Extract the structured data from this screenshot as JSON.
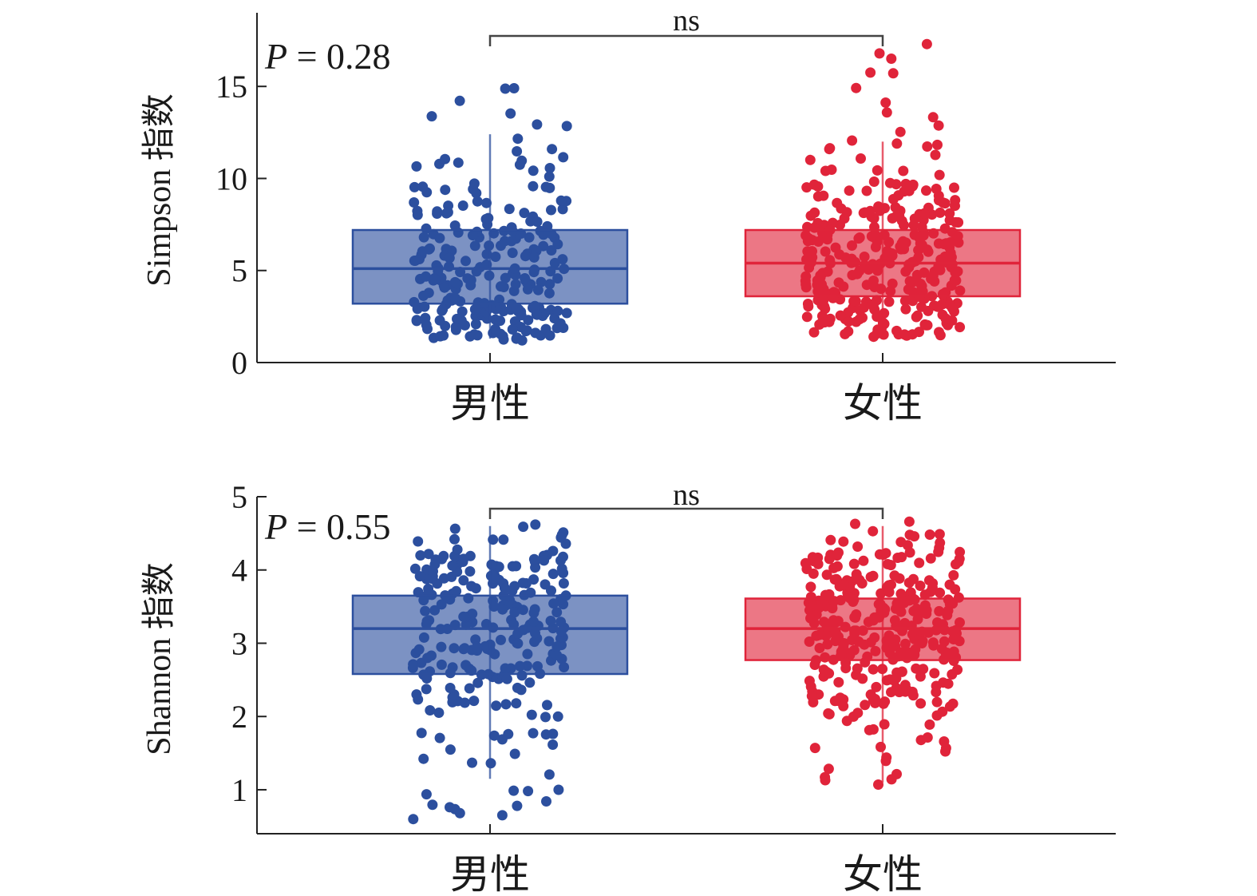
{
  "chart_data": [
    {
      "type": "box",
      "ylabel": "Simpson 指数",
      "categories": [
        "男性",
        "女性"
      ],
      "yticks": [
        0,
        5,
        10,
        15
      ],
      "ylim": [
        0,
        19
      ],
      "p_value_prefix": "P",
      "p_value_text": " = 0.28",
      "significance": "ns",
      "colors": {
        "男性": "#2c4f9e",
        "女性": "#e0243a"
      },
      "boxes": [
        {
          "category": "男性",
          "q1": 3.2,
          "median": 5.1,
          "q3": 7.2,
          "whisker_low": 1.3,
          "whisker_high": 12.4
        },
        {
          "category": "女性",
          "q1": 3.6,
          "median": 5.4,
          "q3": 7.2,
          "whisker_low": 1.4,
          "whisker_high": 12.0
        }
      ],
      "point_counts": [
        250,
        330
      ],
      "point_ranges": [
        [
          1.2,
          14.9
        ],
        [
          1.4,
          17.3
        ]
      ]
    },
    {
      "type": "box",
      "ylabel": "Shannon 指数",
      "categories": [
        "男性",
        "女性"
      ],
      "yticks": [
        1,
        2,
        3,
        4,
        5
      ],
      "ylim": [
        0.4,
        5
      ],
      "p_value_prefix": "P",
      "p_value_text": " = 0.55",
      "significance": "ns",
      "colors": {
        "男性": "#2c4f9e",
        "女性": "#e0243a"
      },
      "boxes": [
        {
          "category": "男性",
          "q1": 2.58,
          "median": 3.2,
          "q3": 3.65,
          "whisker_low": 1.15,
          "whisker_high": 4.6
        },
        {
          "category": "女性",
          "q1": 2.77,
          "median": 3.2,
          "q3": 3.61,
          "whisker_low": 1.1,
          "whisker_high": 4.6
        }
      ],
      "point_counts": [
        250,
        330
      ],
      "point_ranges": [
        [
          0.6,
          4.62
        ],
        [
          1.07,
          4.66
        ]
      ]
    }
  ]
}
